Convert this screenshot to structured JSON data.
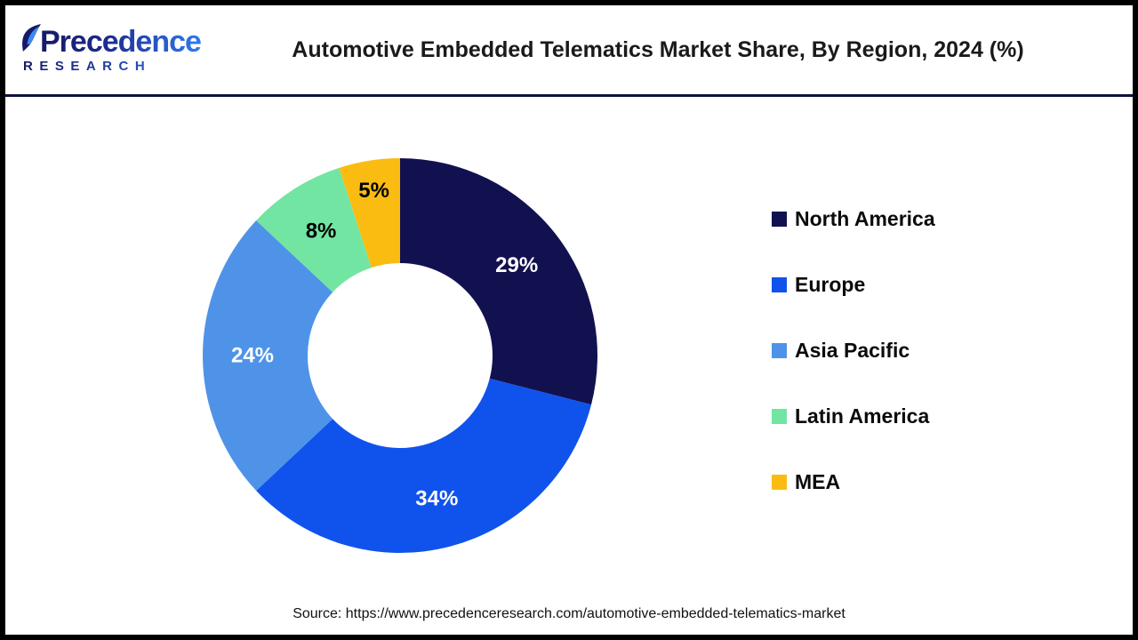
{
  "header": {
    "title": "Automotive Embedded Telematics Market Share, By Region, 2024 (%)",
    "logo": {
      "name": "Precedence",
      "subtitle": "RESEARCH"
    }
  },
  "footer": {
    "source": "Source: https://www.precedenceresearch.com/automotive-embedded-telematics-market"
  },
  "colors": {
    "frame": "#000000",
    "header_rule": "#0e1240",
    "background": "#ffffff",
    "title_text": "#1a1a1a",
    "logo_gradient_start": "#151a66",
    "logo_gradient_end": "#2e7bf0"
  },
  "chart_data": {
    "type": "pie",
    "subtype": "donut",
    "title": "Automotive Embedded Telematics Market Share, By Region, 2024 (%)",
    "categories": [
      "North America",
      "Europe",
      "Asia Pacific",
      "Latin America",
      "MEA"
    ],
    "values": [
      29,
      34,
      24,
      8,
      5
    ],
    "data_labels": [
      "29%",
      "34%",
      "24%",
      "8%",
      "5%"
    ],
    "colors": [
      "#121150",
      "#1053ec",
      "#4f93e8",
      "#72e5a2",
      "#fbbc12"
    ],
    "label_colors": [
      "#ffffff",
      "#ffffff",
      "#ffffff",
      "#000000",
      "#000000"
    ],
    "start_angle_deg": 0,
    "direction": "clockwise",
    "legend_position": "right",
    "donut_hole_ratio": 0.47
  }
}
